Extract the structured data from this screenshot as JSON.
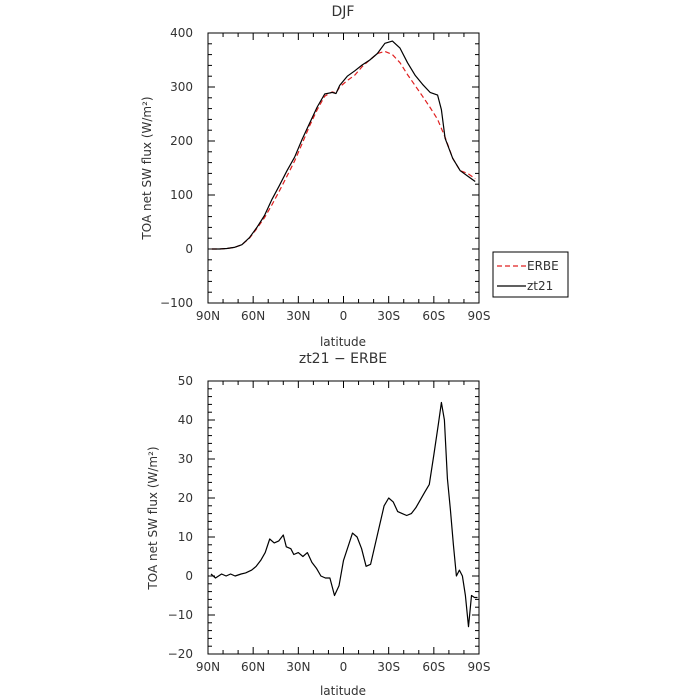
{
  "chart_data": [
    {
      "type": "line",
      "title": "DJF",
      "xlabel": "latitude",
      "ylabel": "TOA net SW flux (W/m²)",
      "xlim": [
        90,
        -90
      ],
      "ylim": [
        -100,
        400
      ],
      "x_ticks": [
        {
          "value": 90,
          "label": "90N"
        },
        {
          "value": 60,
          "label": "60N"
        },
        {
          "value": 30,
          "label": "30N"
        },
        {
          "value": 0,
          "label": "0"
        },
        {
          "value": -30,
          "label": "30S"
        },
        {
          "value": -60,
          "label": "60S"
        },
        {
          "value": -90,
          "label": "90S"
        }
      ],
      "y_ticks": [
        {
          "value": 400,
          "label": "400"
        },
        {
          "value": 300,
          "label": "300"
        },
        {
          "value": 200,
          "label": "200"
        },
        {
          "value": 100,
          "label": "100"
        },
        {
          "value": 0,
          "label": "0"
        },
        {
          "value": -100,
          "label": "−100"
        }
      ],
      "legend": "outside-right",
      "series": [
        {
          "name": "ERBE",
          "color": "#e02020",
          "dash": "dashed",
          "x": [
            87.5,
            82.5,
            77.5,
            72.5,
            67.5,
            62.5,
            57.5,
            52.5,
            47.5,
            42.5,
            37.5,
            32.5,
            27.5,
            22.5,
            17.5,
            12.5,
            7.5,
            5,
            2.5,
            -2.5,
            -7.5,
            -12.5,
            -17.5,
            -22.5,
            -27.5,
            -32.5,
            -37.5,
            -42.5,
            -47.5,
            -52.5,
            -57.5,
            -62.5,
            -67.5,
            -72.5,
            -77.5,
            -82.5,
            -87.5
          ],
          "y": [
            0,
            0,
            1,
            3,
            8,
            20,
            38,
            58,
            82,
            108,
            135,
            163,
            195,
            228,
            258,
            283,
            291,
            289,
            300,
            312,
            322,
            338,
            350,
            362,
            366,
            360,
            345,
            323,
            303,
            283,
            262,
            240,
            207,
            168,
            145,
            140,
            130
          ]
        },
        {
          "name": "zt21",
          "color": "#000000",
          "dash": "solid",
          "x": [
            87.5,
            82.5,
            77.5,
            72.5,
            67.5,
            62.5,
            57.5,
            52.5,
            47.5,
            42.5,
            37.5,
            32.5,
            27.5,
            22.5,
            17.5,
            12.5,
            7.5,
            5,
            2.5,
            -2.5,
            -7.5,
            -12.5,
            -17.5,
            -22.5,
            -27.5,
            -32.5,
            -37.5,
            -42.5,
            -47.5,
            -52.5,
            -57.5,
            -62.5,
            -65,
            -67.5,
            -72.5,
            -77.5,
            -82.5,
            -87.5
          ],
          "y": [
            0,
            0,
            1,
            3,
            8,
            21,
            40,
            62,
            92,
            118,
            145,
            170,
            203,
            233,
            263,
            287,
            290,
            288,
            303,
            320,
            330,
            341,
            350,
            362,
            381,
            385,
            372,
            345,
            322,
            305,
            290,
            285,
            258,
            205,
            168,
            145,
            135,
            125
          ]
        }
      ]
    },
    {
      "type": "line",
      "title": "zt21 − ERBE",
      "xlabel": "latitude",
      "ylabel": "TOA net SW flux (W/m²)",
      "xlim": [
        90,
        -90
      ],
      "ylim": [
        -20,
        50
      ],
      "x_ticks": [
        {
          "value": 90,
          "label": "90N"
        },
        {
          "value": 60,
          "label": "60N"
        },
        {
          "value": 30,
          "label": "30N"
        },
        {
          "value": 0,
          "label": "0"
        },
        {
          "value": -30,
          "label": "30S"
        },
        {
          "value": -60,
          "label": "60S"
        },
        {
          "value": -90,
          "label": "90S"
        }
      ],
      "y_ticks": [
        {
          "value": 50,
          "label": "50"
        },
        {
          "value": 40,
          "label": "40"
        },
        {
          "value": 30,
          "label": "30"
        },
        {
          "value": 20,
          "label": "20"
        },
        {
          "value": 10,
          "label": "10"
        },
        {
          "value": 0,
          "label": "0"
        },
        {
          "value": -10,
          "label": "−10"
        },
        {
          "value": -20,
          "label": "−20"
        }
      ],
      "series": [
        {
          "color": "#000000",
          "dash": "solid",
          "x": [
            88,
            85,
            81,
            78,
            75,
            72,
            68,
            65,
            61,
            58,
            55,
            52,
            49,
            46,
            43,
            40,
            38,
            35,
            33,
            30,
            27,
            24,
            21,
            18,
            15,
            12,
            9,
            6,
            3,
            0,
            -3,
            -6,
            -9,
            -12,
            -15,
            -18,
            -21,
            -24,
            -27,
            -30,
            -33,
            -36,
            -39,
            -42,
            -45,
            -48,
            -51,
            -54,
            -57,
            -60,
            -63,
            -65,
            -67,
            -69,
            -71,
            -73,
            -75,
            -77,
            -79,
            -81,
            -83,
            -85,
            -87,
            -89
          ],
          "y": [
            0.5,
            -0.5,
            0.5,
            0,
            0.5,
            0,
            0.5,
            0.8,
            1.5,
            2.5,
            4,
            6,
            9.5,
            8.5,
            9,
            10.5,
            7.5,
            7,
            5.5,
            6,
            5,
            6,
            3.5,
            2,
            0,
            -0.5,
            -0.5,
            -5,
            -2.5,
            4,
            7.5,
            11,
            10,
            7,
            2.5,
            3,
            8,
            13,
            18,
            20,
            19,
            16.5,
            16,
            15.5,
            16,
            17.5,
            19.5,
            21.5,
            23.5,
            31,
            39,
            44.5,
            40,
            25,
            17,
            8,
            0,
            1.5,
            0,
            -5,
            -13,
            -5,
            -5.5,
            -5.5
          ]
        }
      ]
    }
  ]
}
